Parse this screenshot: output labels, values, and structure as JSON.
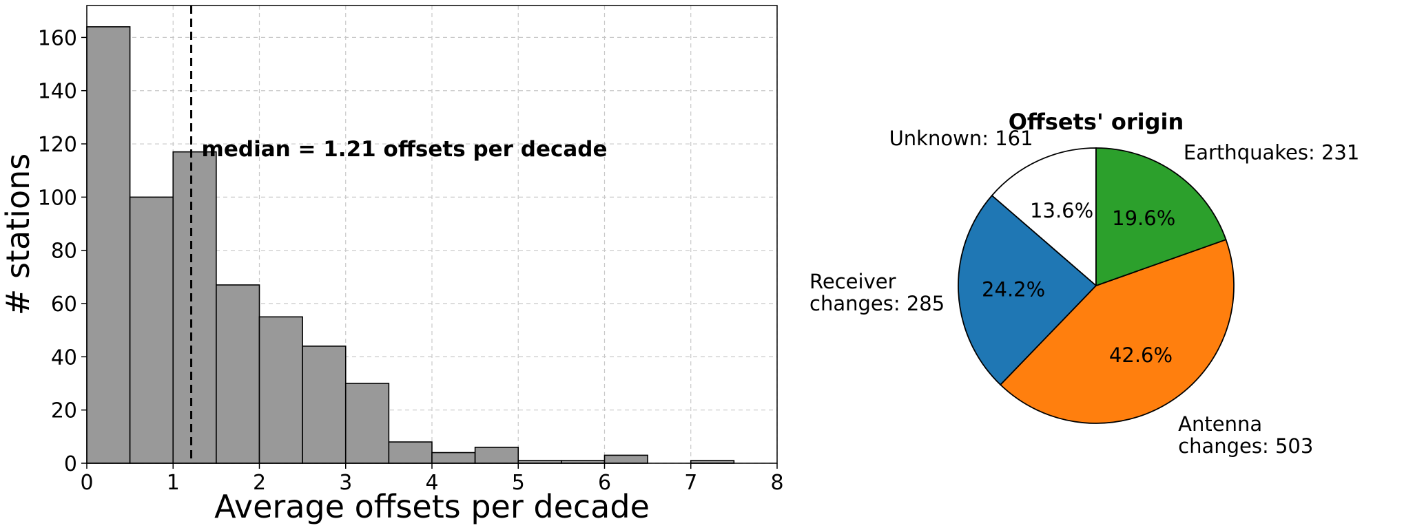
{
  "chart_data": [
    {
      "type": "bar",
      "subtype": "histogram",
      "xlabel": "Average offsets per decade",
      "ylabel": "# stations",
      "xlim": [
        0,
        8
      ],
      "ylim": [
        0,
        172
      ],
      "xticks": [
        "0",
        "1",
        "2",
        "3",
        "4",
        "5",
        "6",
        "7",
        "8"
      ],
      "yticks": [
        "0",
        "20",
        "40",
        "60",
        "80",
        "100",
        "120",
        "140",
        "160"
      ],
      "grid": true,
      "bar_color": "#999999",
      "bin_width": 0.5,
      "bins": [
        {
          "x0": 0.0,
          "count": 164
        },
        {
          "x0": 0.5,
          "count": 100
        },
        {
          "x0": 1.0,
          "count": 117
        },
        {
          "x0": 1.5,
          "count": 67
        },
        {
          "x0": 2.0,
          "count": 55
        },
        {
          "x0": 2.5,
          "count": 44
        },
        {
          "x0": 3.0,
          "count": 30
        },
        {
          "x0": 3.5,
          "count": 8
        },
        {
          "x0": 4.0,
          "count": 4
        },
        {
          "x0": 4.5,
          "count": 6
        },
        {
          "x0": 5.0,
          "count": 1
        },
        {
          "x0": 5.5,
          "count": 1
        },
        {
          "x0": 6.0,
          "count": 3
        },
        {
          "x0": 6.5,
          "count": 0
        },
        {
          "x0": 7.0,
          "count": 1
        }
      ],
      "median": 1.21,
      "annotation": "median = 1.21 offsets per decade"
    },
    {
      "type": "pie",
      "title": "Offsets' origin",
      "slices": [
        {
          "name": "Unknown",
          "value": 161,
          "label": "Unknown: 161",
          "pct": "13.6%",
          "color": "#ffffff"
        },
        {
          "name": "Receiver changes",
          "value": 285,
          "label_lines": [
            "Receiver",
            "changes: 285"
          ],
          "pct": "24.2%",
          "color": "#1f77b4"
        },
        {
          "name": "Antenna changes",
          "value": 503,
          "label_lines": [
            "Antenna",
            "changes: 503"
          ],
          "pct": "42.6%",
          "color": "#ff7f0e"
        },
        {
          "name": "Earthquakes",
          "value": 231,
          "label": "Earthquakes: 231",
          "pct": "19.6%",
          "color": "#2ca02c"
        }
      ]
    }
  ]
}
